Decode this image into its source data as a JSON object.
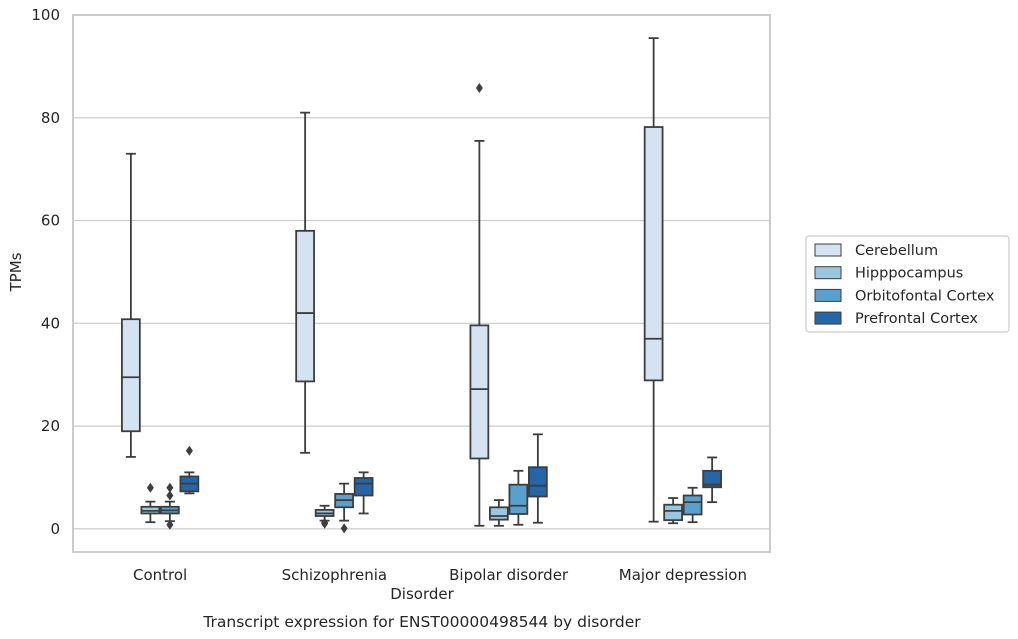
{
  "chart_data": {
    "type": "boxplot",
    "caption": "Transcript expression for ENST00000498544 by disorder",
    "xlabel": "Disorder",
    "ylabel": "TPMs",
    "ylim": [
      -4.5,
      100
    ],
    "yticks": [
      0,
      20,
      40,
      60,
      80,
      100
    ],
    "grid": "horizontal",
    "legend_position": "right",
    "categories": [
      "Control",
      "Schizophrenia",
      "Bipolar disorder",
      "Major depression"
    ],
    "series": [
      {
        "name": "Cerebellum",
        "color": "#d4e3f2",
        "boxes": [
          {
            "min": 14.0,
            "q1": 19.0,
            "median": 29.5,
            "q3": 40.8,
            "max": 73.0,
            "outliers": []
          },
          {
            "min": 14.8,
            "q1": 28.7,
            "median": 42.0,
            "q3": 58.0,
            "max": 81.0,
            "outliers": []
          },
          {
            "min": 0.6,
            "q1": 13.7,
            "median": 27.2,
            "q3": 39.6,
            "max": 75.5,
            "outliers": [
              85.8
            ]
          },
          {
            "min": 1.4,
            "q1": 28.9,
            "median": 37.0,
            "q3": 78.2,
            "max": 95.5,
            "outliers": []
          }
        ]
      },
      {
        "name": "Hipppocampus",
        "color": "#9ac7e0",
        "boxes": [
          {
            "min": 1.3,
            "q1": 3.0,
            "median": 3.5,
            "q3": 4.3,
            "max": 5.3,
            "outliers": [
              8.0
            ]
          },
          {
            "min": 1.6,
            "q1": 2.5,
            "median": 3.0,
            "q3": 3.7,
            "max": 4.5,
            "outliers": [
              1.0,
              1.2
            ]
          },
          {
            "min": 0.6,
            "q1": 1.8,
            "median": 2.5,
            "q3": 4.2,
            "max": 5.6,
            "outliers": []
          },
          {
            "min": 1.1,
            "q1": 1.7,
            "median": 3.5,
            "q3": 4.7,
            "max": 6.0,
            "outliers": []
          }
        ]
      },
      {
        "name": "Orbitofontal Cortex",
        "color": "#5aa0cf",
        "boxes": [
          {
            "min": 1.5,
            "q1": 3.0,
            "median": 3.6,
            "q3": 4.3,
            "max": 5.3,
            "outliers": [
              6.5,
              8.0,
              0.8
            ]
          },
          {
            "min": 1.6,
            "q1": 4.2,
            "median": 5.6,
            "q3": 6.8,
            "max": 8.8,
            "outliers": [
              0.1
            ]
          },
          {
            "min": 0.8,
            "q1": 2.9,
            "median": 4.5,
            "q3": 8.6,
            "max": 11.3,
            "outliers": []
          },
          {
            "min": 1.3,
            "q1": 2.8,
            "median": 5.2,
            "q3": 6.5,
            "max": 8.0,
            "outliers": []
          }
        ]
      },
      {
        "name": "Prefrontal Cortex",
        "color": "#2565a8",
        "boxes": [
          {
            "min": 6.9,
            "q1": 7.3,
            "median": 8.8,
            "q3": 10.2,
            "max": 11.0,
            "outliers": [
              15.2
            ]
          },
          {
            "min": 3.0,
            "q1": 6.5,
            "median": 8.8,
            "q3": 9.9,
            "max": 11.0,
            "outliers": []
          },
          {
            "min": 1.2,
            "q1": 6.3,
            "median": 8.4,
            "q3": 12.0,
            "max": 18.4,
            "outliers": []
          },
          {
            "min": 5.2,
            "q1": 8.1,
            "median": 8.6,
            "q3": 11.3,
            "max": 13.9,
            "outliers": []
          }
        ]
      }
    ]
  }
}
